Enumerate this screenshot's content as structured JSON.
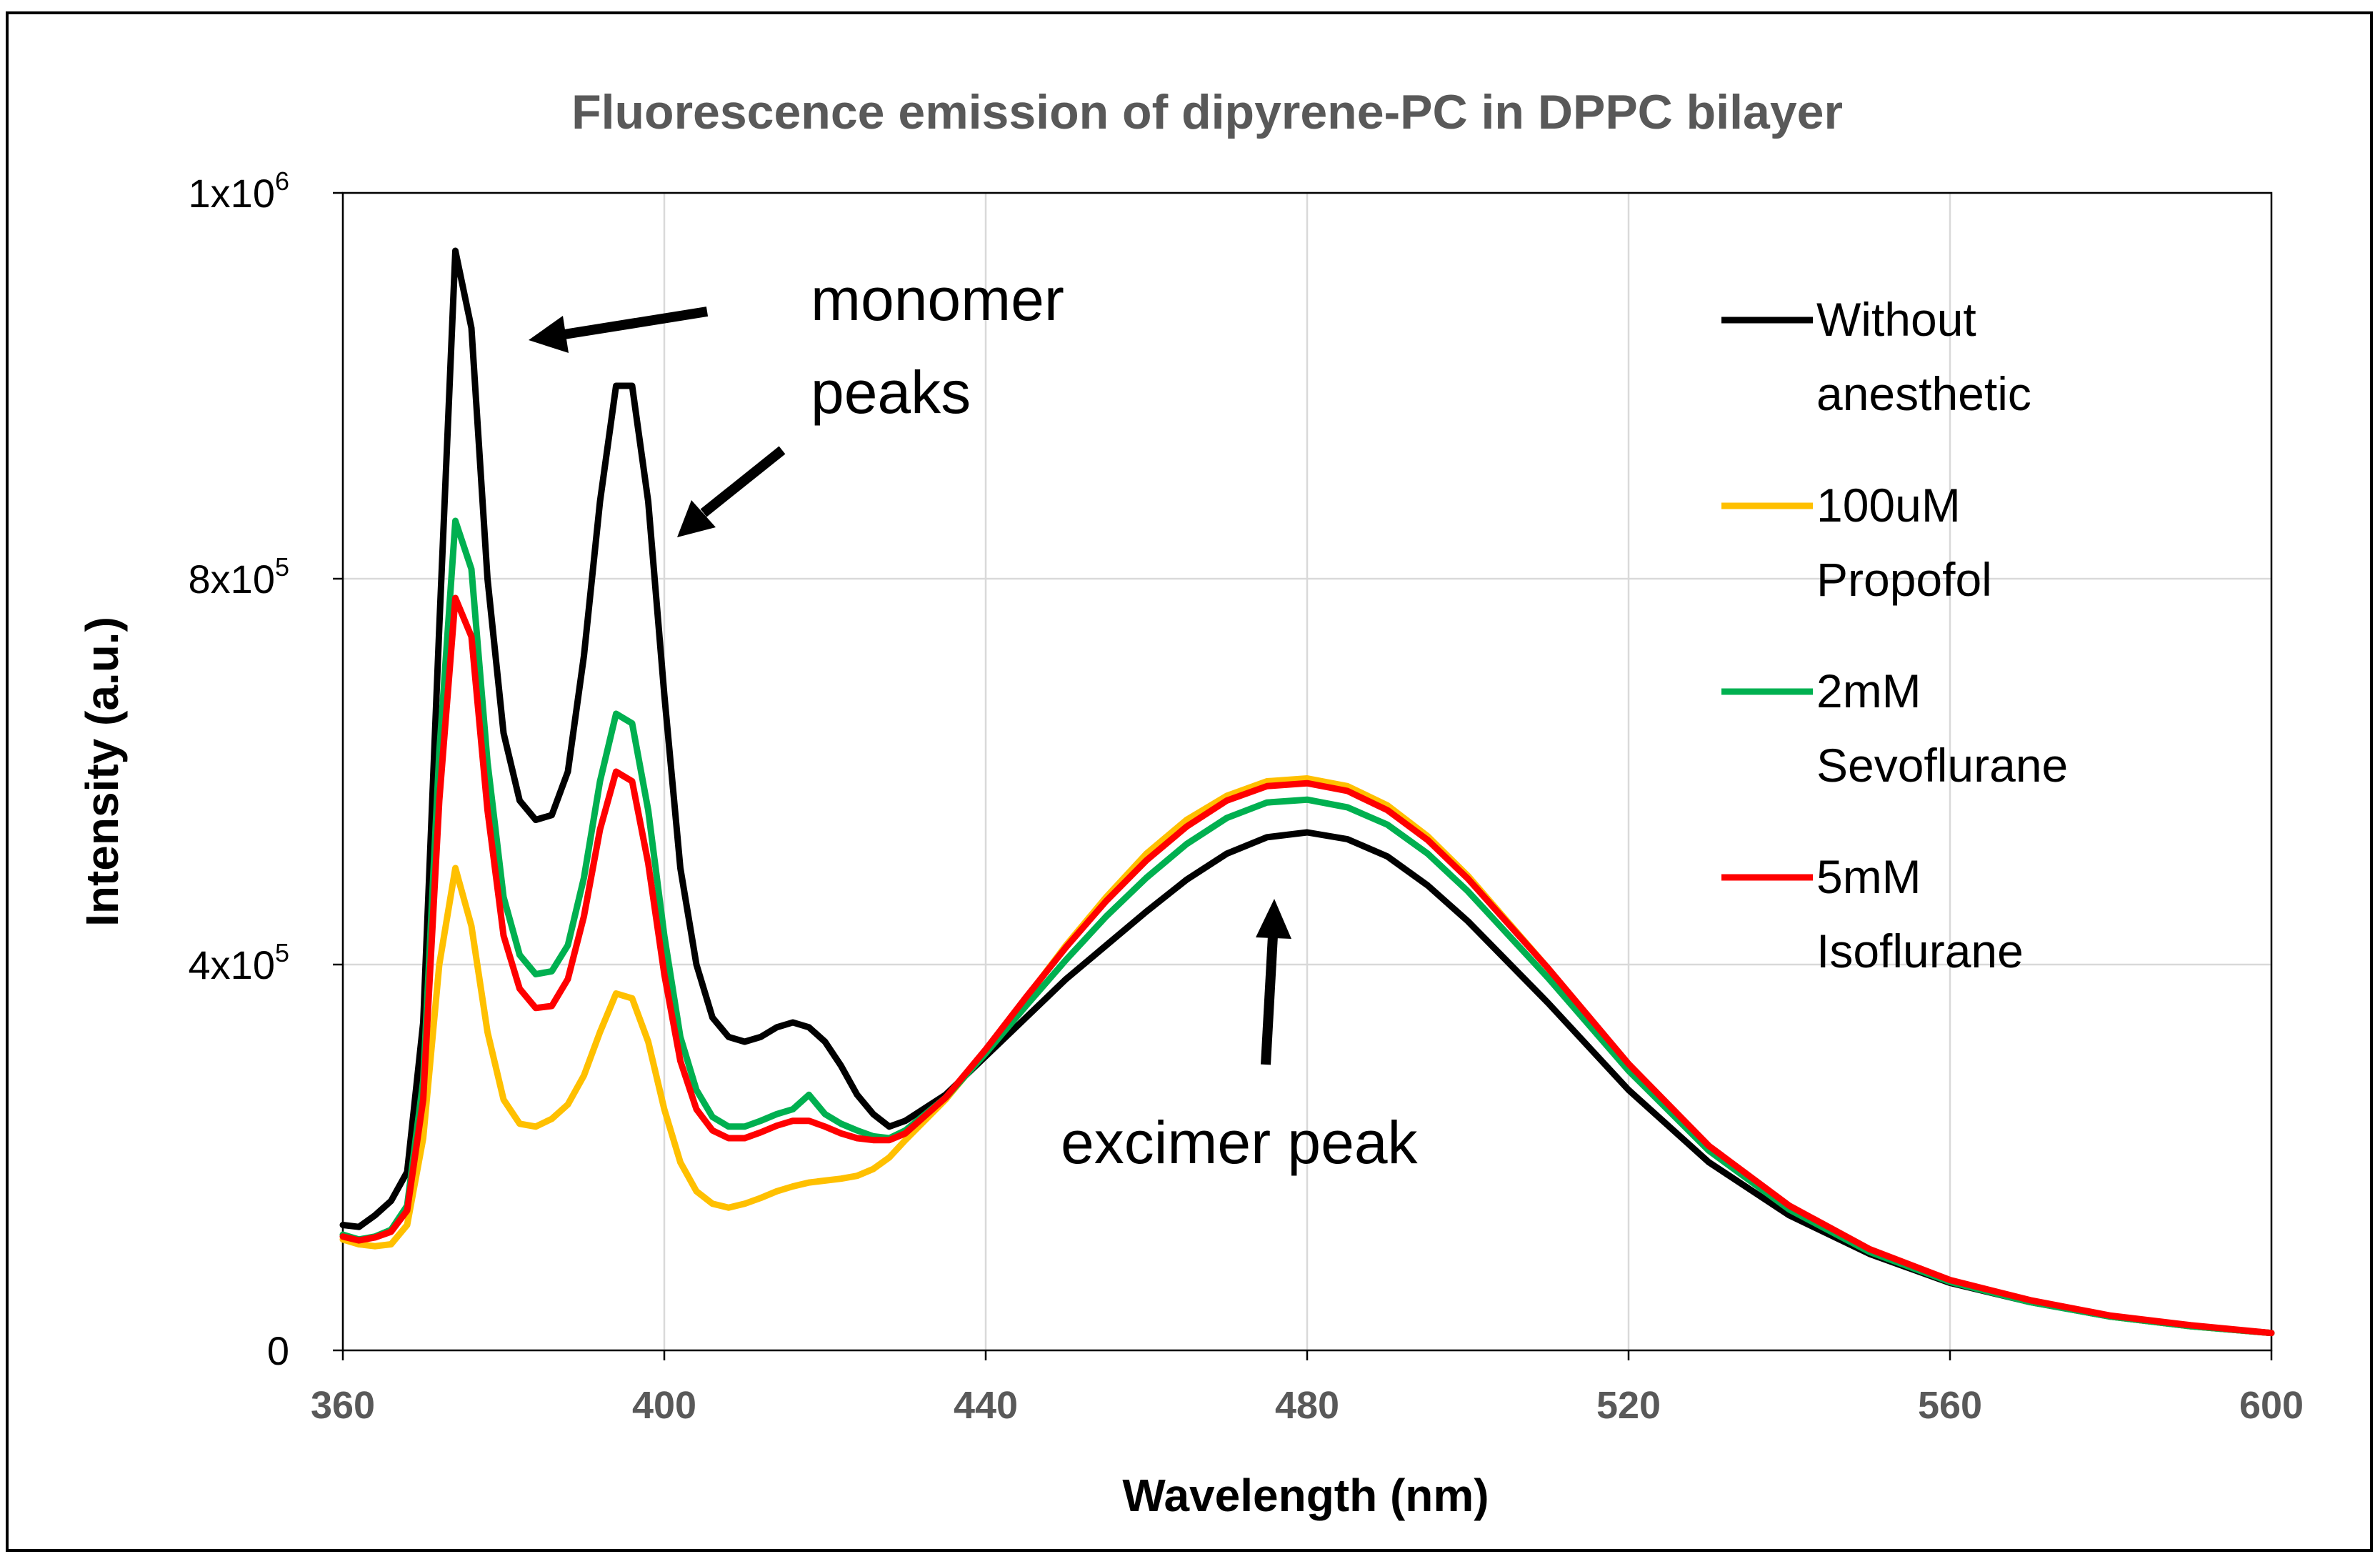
{
  "chart_data": {
    "type": "line",
    "title": "Fluorescence emission of dipyrene-PC in DPPC bilayer",
    "xlabel": "Wavelength (nm)",
    "ylabel": "Intensity (a.u.)",
    "xlim": [
      360,
      600
    ],
    "ylim": [
      0,
      1200000
    ],
    "grid": true,
    "legend_position": "right",
    "x_ticks": [
      360,
      400,
      440,
      480,
      520,
      560,
      600
    ],
    "x_tick_labels": [
      "360",
      "400",
      "440",
      "480",
      "520",
      "560",
      "600"
    ],
    "y_ticks": [
      {
        "value": 0,
        "base": "0",
        "exp": ""
      },
      {
        "value": 400000,
        "base": "4x10",
        "exp": "5"
      },
      {
        "value": 800000,
        "base": "8x10",
        "exp": "5"
      },
      {
        "value": 1200000,
        "base": "1x10",
        "exp": "6"
      }
    ],
    "annotations": {
      "monomer_line1": "monomer",
      "monomer_line2": "peaks",
      "excimer": "excimer peak"
    },
    "series": [
      {
        "name_line1": "Without",
        "name_line2": "anesthetic",
        "color": "#000000",
        "x": [
          360,
          362,
          364,
          366,
          368,
          370,
          372,
          374,
          376,
          378,
          380,
          382,
          384,
          386,
          388,
          390,
          392,
          394,
          396,
          398,
          400,
          402,
          404,
          406,
          408,
          410,
          412,
          414,
          416,
          418,
          420,
          422,
          424,
          426,
          428,
          430,
          435,
          440,
          445,
          450,
          455,
          460,
          465,
          470,
          475,
          480,
          485,
          490,
          495,
          500,
          510,
          520,
          530,
          540,
          550,
          560,
          570,
          580,
          590,
          600
        ],
        "y": [
          130000,
          128000,
          140000,
          155000,
          185000,
          340000,
          750000,
          1140000,
          1060000,
          800000,
          640000,
          570000,
          550000,
          555000,
          600000,
          720000,
          880000,
          1000000,
          1000000,
          880000,
          680000,
          500000,
          400000,
          345000,
          325000,
          320000,
          325000,
          335000,
          340000,
          335000,
          320000,
          295000,
          265000,
          245000,
          232000,
          238000,
          265000,
          305000,
          345000,
          385000,
          420000,
          455000,
          488000,
          515000,
          532000,
          537000,
          530000,
          512000,
          482000,
          445000,
          360000,
          270000,
          195000,
          140000,
          100000,
          70000,
          50000,
          35000,
          25000,
          18000
        ]
      },
      {
        "name_line1": "100uM",
        "name_line2": "Propofol",
        "color": "#ffc000",
        "x": [
          360,
          362,
          364,
          366,
          368,
          370,
          372,
          374,
          376,
          378,
          380,
          382,
          384,
          386,
          388,
          390,
          392,
          394,
          396,
          398,
          400,
          402,
          404,
          406,
          408,
          410,
          412,
          414,
          416,
          418,
          420,
          422,
          424,
          426,
          428,
          430,
          435,
          440,
          445,
          450,
          455,
          460,
          465,
          470,
          475,
          480,
          485,
          490,
          495,
          500,
          510,
          520,
          530,
          540,
          550,
          560,
          570,
          580,
          590,
          600
        ],
        "y": [
          115000,
          110000,
          108000,
          110000,
          130000,
          220000,
          400000,
          500000,
          440000,
          330000,
          260000,
          235000,
          232000,
          240000,
          255000,
          285000,
          330000,
          370000,
          365000,
          320000,
          250000,
          195000,
          165000,
          152000,
          148000,
          152000,
          158000,
          165000,
          170000,
          174000,
          176000,
          178000,
          181000,
          188000,
          200000,
          218000,
          260000,
          310000,
          365000,
          420000,
          470000,
          515000,
          550000,
          575000,
          590000,
          593000,
          585000,
          565000,
          533000,
          492000,
          396000,
          296000,
          210000,
          148000,
          103000,
          72000,
          51000,
          35000,
          25000,
          18000
        ]
      },
      {
        "name_line1": "2mM",
        "name_line2": "Sevoflurane",
        "color": "#00b050",
        "x": [
          360,
          362,
          364,
          366,
          368,
          370,
          372,
          374,
          376,
          378,
          380,
          382,
          384,
          386,
          388,
          390,
          392,
          394,
          396,
          398,
          400,
          402,
          404,
          406,
          408,
          410,
          412,
          414,
          416,
          418,
          420,
          422,
          424,
          426,
          428,
          430,
          435,
          440,
          445,
          450,
          455,
          460,
          465,
          470,
          475,
          480,
          485,
          490,
          495,
          500,
          510,
          520,
          530,
          540,
          550,
          560,
          570,
          580,
          590,
          600
        ],
        "y": [
          120000,
          115000,
          118000,
          125000,
          150000,
          280000,
          620000,
          860000,
          810000,
          610000,
          470000,
          410000,
          390000,
          393000,
          420000,
          490000,
          590000,
          660000,
          650000,
          560000,
          430000,
          325000,
          270000,
          242000,
          232000,
          232000,
          238000,
          245000,
          250000,
          265000,
          245000,
          235000,
          228000,
          222000,
          220000,
          228000,
          262000,
          308000,
          357000,
          405000,
          450000,
          490000,
          525000,
          552000,
          568000,
          571000,
          563000,
          545000,
          515000,
          476000,
          386000,
          290000,
          207000,
          146000,
          102000,
          71000,
          50000,
          35000,
          25000,
          18000
        ]
      },
      {
        "name_line1": "5mM",
        "name_line2": "Isoflurane",
        "color": "#ff0000",
        "x": [
          360,
          362,
          364,
          366,
          368,
          370,
          372,
          374,
          376,
          378,
          380,
          382,
          384,
          386,
          388,
          390,
          392,
          394,
          396,
          398,
          400,
          402,
          404,
          406,
          408,
          410,
          412,
          414,
          416,
          418,
          420,
          422,
          424,
          426,
          428,
          430,
          435,
          440,
          445,
          450,
          455,
          460,
          465,
          470,
          475,
          480,
          485,
          490,
          495,
          500,
          510,
          520,
          530,
          540,
          550,
          560,
          570,
          580,
          590,
          600
        ],
        "y": [
          118000,
          114000,
          117000,
          123000,
          145000,
          260000,
          570000,
          780000,
          740000,
          560000,
          430000,
          375000,
          355000,
          357000,
          385000,
          450000,
          540000,
          600000,
          590000,
          505000,
          390000,
          300000,
          250000,
          228000,
          220000,
          220000,
          226000,
          233000,
          238000,
          238000,
          232000,
          225000,
          220000,
          218000,
          218000,
          225000,
          262000,
          312000,
          366000,
          418000,
          466000,
          508000,
          543000,
          570000,
          585000,
          588000,
          580000,
          560000,
          529000,
          489000,
          396000,
          297000,
          212000,
          150000,
          105000,
          73000,
          52000,
          36000,
          26000,
          18000
        ]
      }
    ]
  }
}
